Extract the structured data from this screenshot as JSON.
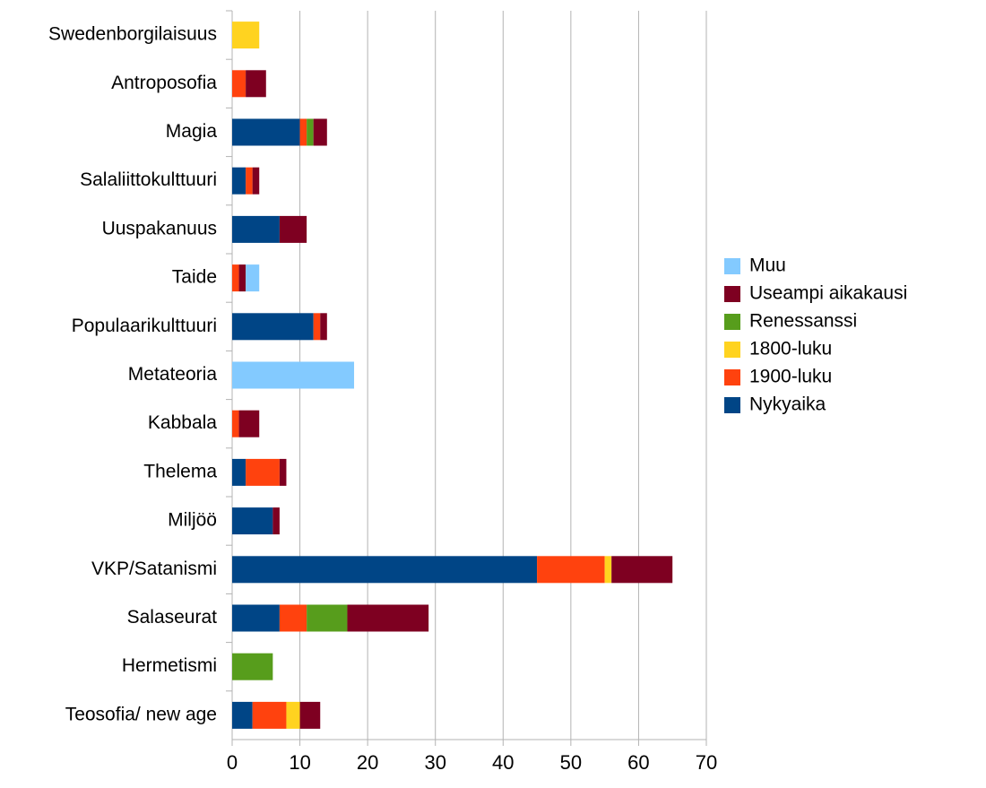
{
  "chart_data": {
    "type": "bar",
    "orientation": "horizontal",
    "stacked": true,
    "categories": [
      "Swedenborgilaisuus",
      "Antroposofia",
      "Magia",
      "Salaliittokulttuuri",
      "Uuspakanuus",
      "Taide",
      "Populaarikulttuuri",
      "Metateoria",
      "Kabbala",
      "Thelema",
      "Miljöö",
      "VKP/Satanismi",
      "Salaseurat",
      "Hermetismi",
      "Teosofia/ new age"
    ],
    "series": [
      {
        "name": "Nykyaika",
        "color": "#004586",
        "values": [
          0,
          0,
          10,
          2,
          7,
          0,
          12,
          0,
          0,
          2,
          6,
          45,
          7,
          0,
          3
        ]
      },
      {
        "name": "1900-luku",
        "color": "#ff420e",
        "values": [
          0,
          2,
          1,
          1,
          0,
          1,
          1,
          0,
          1,
          5,
          0,
          10,
          4,
          0,
          5
        ]
      },
      {
        "name": "1800-luku",
        "color": "#ffd320",
        "values": [
          4,
          0,
          0,
          0,
          0,
          0,
          0,
          0,
          0,
          0,
          0,
          1,
          0,
          0,
          2
        ]
      },
      {
        "name": "Renessanssi",
        "color": "#579d1c",
        "values": [
          0,
          0,
          1,
          0,
          0,
          0,
          0,
          0,
          0,
          0,
          0,
          0,
          6,
          6,
          0
        ]
      },
      {
        "name": "Useampi aikakausi",
        "color": "#7e0021",
        "values": [
          0,
          3,
          2,
          1,
          4,
          1,
          1,
          0,
          3,
          1,
          1,
          9,
          12,
          0,
          3
        ]
      },
      {
        "name": "Muu",
        "color": "#83caff",
        "values": [
          0,
          0,
          0,
          0,
          0,
          2,
          0,
          18,
          0,
          0,
          0,
          0,
          0,
          0,
          0
        ]
      }
    ],
    "xlim": [
      0,
      70
    ],
    "xticks": [
      0,
      10,
      20,
      30,
      40,
      50,
      60,
      70
    ],
    "grid": true,
    "legend": "right"
  }
}
